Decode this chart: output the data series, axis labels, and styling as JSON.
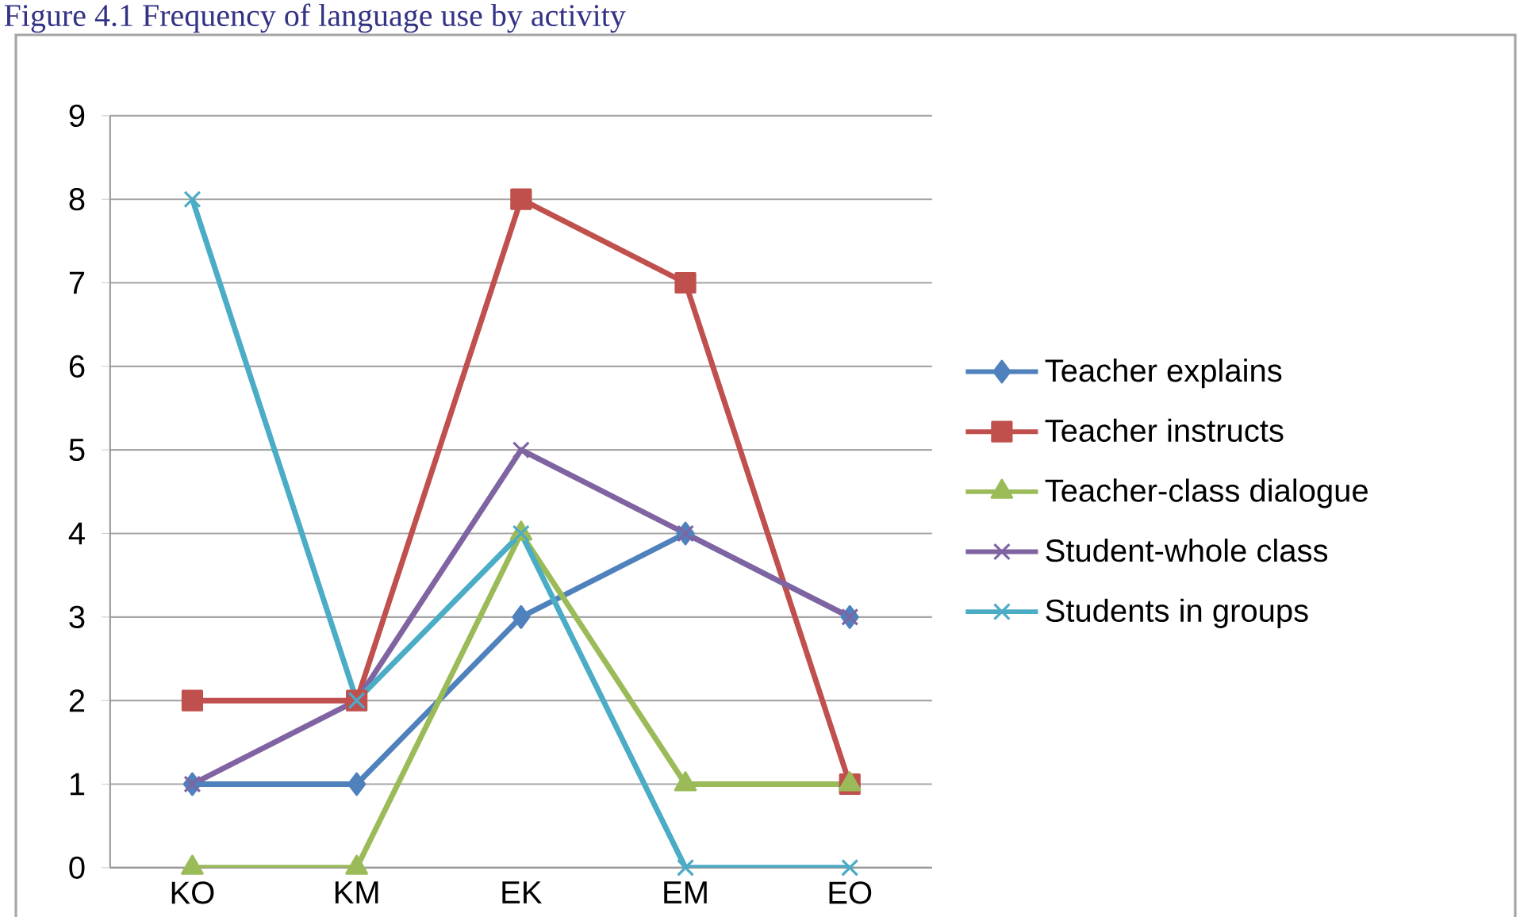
{
  "chart_data": {
    "type": "line",
    "title": "Figure 4.1 Frequency of language use by activity",
    "categories": [
      "KO",
      "KM",
      "EK",
      "EM",
      "EO"
    ],
    "series": [
      {
        "name": "Teacher explains",
        "color": "#4f81bd",
        "marker": "diamond",
        "values": [
          1,
          1,
          3,
          4,
          3
        ]
      },
      {
        "name": "Teacher instructs",
        "color": "#c0504d",
        "marker": "square",
        "values": [
          2,
          2,
          8,
          7,
          1
        ]
      },
      {
        "name": "Teacher-class dialogue",
        "color": "#9bbb59",
        "marker": "triangle",
        "values": [
          0,
          0,
          4,
          1,
          1
        ]
      },
      {
        "name": "Student-whole class",
        "color": "#8064a2",
        "marker": "cross",
        "values": [
          1,
          2,
          5,
          4,
          3
        ]
      },
      {
        "name": "Students in groups",
        "color": "#4bacc6",
        "marker": "cross",
        "values": [
          8,
          2,
          4,
          0,
          0
        ]
      }
    ],
    "ylim": [
      0,
      9
    ],
    "yticks": [
      0,
      1,
      2,
      3,
      4,
      5,
      6,
      7,
      8,
      9
    ],
    "grid": "y",
    "legend": "right",
    "line_style": "solid"
  }
}
